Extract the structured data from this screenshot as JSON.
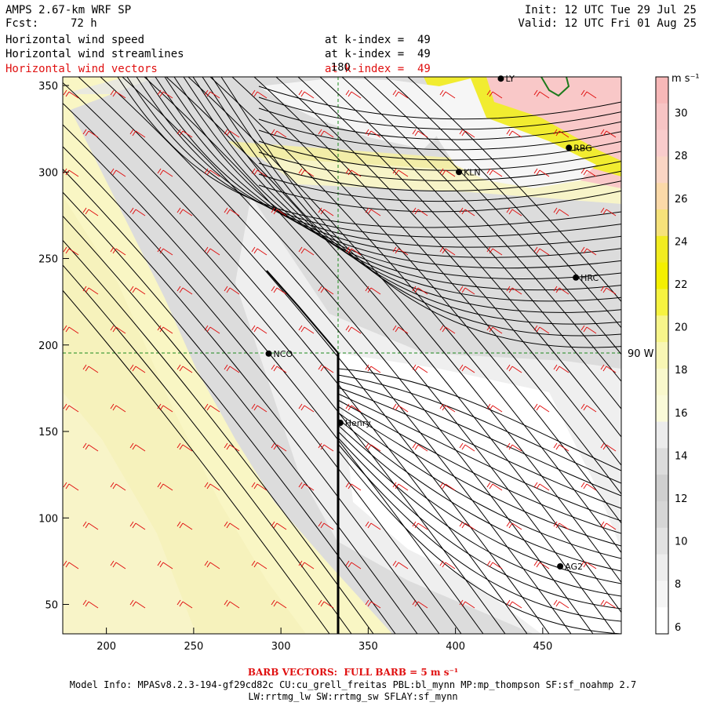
{
  "header": {
    "model": "AMPS 2.67-km WRF SP",
    "fcst_label": "Fcst:",
    "fcst_value": "72 h",
    "init": "Init: 12 UTC Tue 29 Jul 25",
    "valid": "Valid: 12 UTC Fri 01 Aug 25"
  },
  "fields": [
    {
      "name": "Horizontal wind speed",
      "level": "at k-index =  49",
      "color": "#000000"
    },
    {
      "name": "Horizontal wind streamlines",
      "level": "at k-index =  49",
      "color": "#000000"
    },
    {
      "name": "Horizontal wind vectors",
      "level": "at k-index =  49",
      "color": "#e01010"
    }
  ],
  "axes": {
    "x_ticks": [
      "200",
      "250",
      "300",
      "350",
      "400",
      "450"
    ],
    "y_ticks": [
      "350",
      "300",
      "250",
      "200",
      "150",
      "100",
      "50"
    ],
    "x_range": [
      175,
      495
    ],
    "y_range": [
      33,
      355
    ]
  },
  "grid_labels": {
    "lon_180": "180",
    "lon_90w": "90 W"
  },
  "stations": [
    {
      "name": "KLN",
      "x": 402,
      "y": 300
    },
    {
      "name": "RBG",
      "x": 465,
      "y": 314
    },
    {
      "name": "HRC",
      "x": 469,
      "y": 239
    },
    {
      "name": "NCO",
      "x": 293,
      "y": 195
    },
    {
      "name": "Henry",
      "x": 334,
      "y": 155
    },
    {
      "name": "AG2",
      "x": 460,
      "y": 72
    },
    {
      "name": "LY",
      "x": 426,
      "y": 354
    }
  ],
  "colorbar": {
    "unit": "m s⁻¹",
    "labels": [
      "30",
      "28",
      "26",
      "24",
      "22",
      "20",
      "18",
      "16",
      "14",
      "12",
      "10",
      "8",
      "6"
    ],
    "colors": [
      "#f7b8b8",
      "#f7c4c4",
      "#f9cccc",
      "#fad5c4",
      "#fbd9a8",
      "#f6e27a",
      "#f2ec20",
      "#f4f000",
      "#f6f340",
      "#f7f58a",
      "#f8f6b4",
      "#f9f8cc",
      "#fafad8",
      "#ececec",
      "#dcdcdc",
      "#cfcfcf",
      "#d6d6d6",
      "#e2e2e2",
      "#ededed",
      "#f5f5f5",
      "#ffffff"
    ]
  },
  "footer": {
    "barb_note": "BARB VECTORS:  FULL BARB = 5 m s⁻¹",
    "model_info": "Model Info: MPASv8.2.3-194-gf29cd82c CU:cu_grell_freitas PBL:bl_mynn MP:mp_thompson SF:sf_noahmp 2.7",
    "model_info2": "LW:rrtmg_lw SW:rrtmg_sw SFLAY:sf_mynn"
  }
}
